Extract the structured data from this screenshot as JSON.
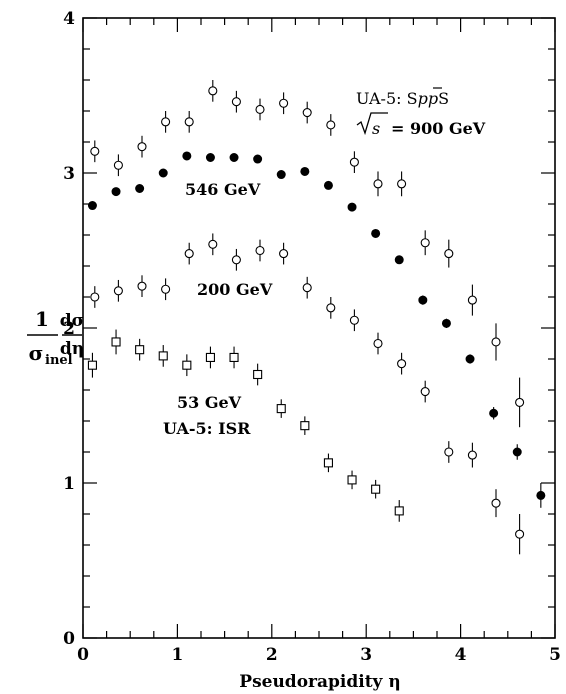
{
  "chart_data": {
    "type": "scatter",
    "xlabel": "Pseudorapidity η",
    "ylabel": {
      "numerator_left": "1",
      "denominator_left": "σ",
      "denominator_left_sub": "inel",
      "numerator_right": "dσ",
      "denominator_right": "dη"
    },
    "xlim": [
      0,
      5
    ],
    "ylim": [
      0,
      4
    ],
    "x_ticks": [
      "0",
      "1",
      "2",
      "3",
      "4",
      "5"
    ],
    "y_ticks": [
      "0",
      "1",
      "2",
      "3",
      "4"
    ],
    "grid": false,
    "annotations": {
      "ua5_sps_prefix": "UA-5: S",
      "ua5_sps_p": "p",
      "ua5_sps_pbar": "p",
      "ua5_sps_suffix": "S",
      "sqrt_s_sym": "s",
      "sqrt_s_value": "= 900 GeV",
      "label_546": "546 GeV",
      "label_200": "200 GeV",
      "label_53": "53 GeV",
      "label_isr": "UA-5: ISR"
    },
    "series": [
      {
        "marker": "open-circle",
        "x": [
          0.125,
          0.375,
          0.625,
          0.875,
          1.125,
          1.375,
          1.625,
          1.875,
          2.125,
          2.375,
          2.625,
          2.875,
          3.125,
          3.375,
          3.625,
          3.875,
          4.125,
          4.375,
          4.625
        ],
        "y": [
          3.14,
          3.05,
          3.17,
          3.33,
          3.33,
          3.53,
          3.46,
          3.41,
          3.45,
          3.39,
          3.31,
          3.07,
          2.93,
          2.93,
          2.55,
          2.48,
          2.18,
          1.91,
          1.52
        ],
        "err": [
          0.07,
          0.07,
          0.07,
          0.07,
          0.07,
          0.07,
          0.07,
          0.07,
          0.07,
          0.07,
          0.07,
          0.07,
          0.08,
          0.08,
          0.08,
          0.09,
          0.1,
          0.12,
          0.16
        ]
      },
      {
        "marker": "filled-circle",
        "x": [
          0.1,
          0.35,
          0.6,
          0.85,
          1.1,
          1.35,
          1.6,
          1.85,
          2.1,
          2.35,
          2.6,
          2.85,
          3.1,
          3.35,
          3.6,
          3.85,
          4.1,
          4.35,
          4.6,
          4.85
        ],
        "y": [
          2.79,
          2.88,
          2.9,
          3.0,
          3.11,
          3.1,
          3.1,
          3.09,
          2.99,
          3.01,
          2.92,
          2.78,
          2.61,
          2.44,
          2.18,
          2.03,
          1.8,
          1.45,
          1.2,
          0.92
        ],
        "err": [
          0.02,
          0.02,
          0.02,
          0.02,
          0.02,
          0.02,
          0.02,
          0.02,
          0.02,
          0.02,
          0.02,
          0.02,
          0.02,
          0.02,
          0.03,
          0.03,
          0.03,
          0.04,
          0.05,
          0.08
        ]
      },
      {
        "marker": "open-circle",
        "x": [
          0.125,
          0.375,
          0.625,
          0.875,
          1.125,
          1.375,
          1.625,
          1.875,
          2.125,
          2.375,
          2.625,
          2.875,
          3.125,
          3.375,
          3.625,
          3.875,
          4.125,
          4.375,
          4.625
        ],
        "y": [
          2.2,
          2.24,
          2.27,
          2.25,
          2.48,
          2.54,
          2.44,
          2.5,
          2.48,
          2.26,
          2.13,
          2.05,
          1.9,
          1.77,
          1.59,
          1.2,
          1.18,
          0.87,
          0.67
        ],
        "err": [
          0.07,
          0.07,
          0.07,
          0.07,
          0.07,
          0.07,
          0.07,
          0.07,
          0.07,
          0.07,
          0.07,
          0.07,
          0.07,
          0.07,
          0.07,
          0.07,
          0.08,
          0.09,
          0.13
        ]
      },
      {
        "marker": "open-square",
        "x": [
          0.1,
          0.35,
          0.6,
          0.85,
          1.1,
          1.35,
          1.6,
          1.85,
          2.1,
          2.35,
          2.6,
          2.85,
          3.1,
          3.35
        ],
        "y": [
          1.76,
          1.91,
          1.86,
          1.82,
          1.76,
          1.81,
          1.81,
          1.7,
          1.48,
          1.37,
          1.13,
          1.02,
          0.96,
          0.82
        ],
        "err": [
          0.08,
          0.08,
          0.07,
          0.07,
          0.07,
          0.07,
          0.07,
          0.07,
          0.06,
          0.06,
          0.06,
          0.06,
          0.06,
          0.07
        ]
      }
    ]
  }
}
